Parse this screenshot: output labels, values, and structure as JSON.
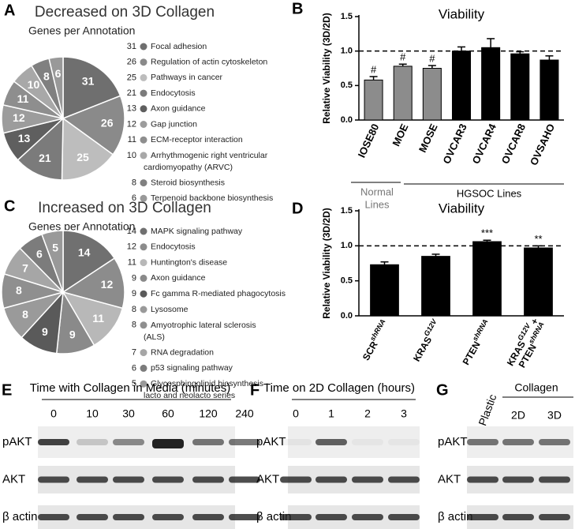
{
  "chart_data": [
    {
      "type": "pie",
      "panel_label": "A",
      "title": "Decreased on 3D Collagen",
      "subtitle": "Genes per Annotation",
      "categories": [
        "Focal adhesion",
        "Regulation of actin cytoskeleton",
        "Pathways in cancer",
        "Endocytosis",
        "Axon guidance",
        "Gap junction",
        "ECM-receptor interaction",
        "Arrhythmogenic right ventricular cardiomyopathy (ARVC)",
        "Steroid biosynthesis",
        "Terpenoid backbone biosynthesis"
      ],
      "values": [
        31,
        26,
        25,
        21,
        13,
        12,
        11,
        10,
        8,
        6
      ],
      "colors": [
        "#6f6f6f",
        "#8a8a8a",
        "#bdbdbd",
        "#7b7b7b",
        "#5f5f5f",
        "#9c9c9c",
        "#8e8e8e",
        "#a8a8a8",
        "#808080",
        "#999999"
      ]
    },
    {
      "type": "bar",
      "panel_label": "B",
      "title": "Viability",
      "ylabel": "Relative Viability (3D/2D)",
      "categories": [
        "IOSE80",
        "MOE",
        "MOSE",
        "OVCAR3",
        "OVCAR4",
        "OVCAR8",
        "OVSAHO"
      ],
      "values": [
        0.58,
        0.78,
        0.75,
        1.0,
        1.05,
        0.96,
        0.87
      ],
      "errors": [
        0.05,
        0.03,
        0.04,
        0.06,
        0.13,
        0.03,
        0.06
      ],
      "colors": [
        "#8c8c8c",
        "#8c8c8c",
        "#8c8c8c",
        "#000000",
        "#000000",
        "#000000",
        "#000000"
      ],
      "annotations": [
        "#",
        "#",
        "#",
        null,
        null,
        null,
        null
      ],
      "ylim": [
        0,
        1.5
      ],
      "yticks": [
        {
          "value": 0,
          "label": "0.0"
        },
        0.5,
        {
          "value": 1,
          "label": "1.0"
        },
        1.5
      ],
      "reference_line": 1,
      "groups": [
        {
          "lines": [
            "Normal",
            "Lines"
          ],
          "color": "#777777"
        },
        {
          "lines": [
            "HGSOC Lines"
          ],
          "color": "#000000"
        }
      ]
    },
    {
      "type": "pie",
      "panel_label": "C",
      "title": "Increased on 3D Collagen",
      "subtitle": "Genes per Annotation",
      "categories": [
        "MAPK signaling pathway",
        "Endocytosis",
        "Huntington's disease",
        "Axon guidance",
        "Fc gamma R-mediated phagocytosis",
        "Lysosome",
        "Amyotrophic lateral sclerosis (ALS)",
        "RNA degradation",
        "p53 signaling pathway",
        "Glycosphingolipid biosynthesis - lacto and neolacto series"
      ],
      "values": [
        14,
        12,
        11,
        9,
        9,
        8,
        8,
        7,
        6,
        5
      ],
      "colors": [
        "#707070",
        "#8c8c8c",
        "#b8b8b8",
        "#8a8a8a",
        "#5a5a5a",
        "#9a9a9a",
        "#8f8f8f",
        "#a6a6a6",
        "#7c7c7c",
        "#999999"
      ]
    },
    {
      "type": "bar",
      "panel_label": "D",
      "title": "Viability",
      "ylabel": "Relative Viability (3D/2D)",
      "categories": [
        [
          [
            {
              "text": "SCR"
            },
            {
              "sup": "shRNA"
            }
          ]
        ],
        [
          [
            {
              "text": "KRAS"
            },
            {
              "sup": "G12V"
            }
          ]
        ],
        [
          [
            {
              "text": "PTEN"
            },
            {
              "sup": "shRNA"
            }
          ]
        ],
        [
          [
            {
              "text": "KRAS"
            },
            {
              "sup": "G12V"
            },
            {
              "text": " +"
            }
          ],
          [
            {
              "text": "PTEN"
            },
            {
              "sup": "shRNA"
            }
          ]
        ]
      ],
      "values": [
        0.73,
        0.85,
        1.06,
        0.97
      ],
      "errors": [
        0.04,
        0.03,
        0.02,
        0.03
      ],
      "colors": [
        "#000000",
        "#000000",
        "#000000",
        "#000000"
      ],
      "annotations": [
        null,
        null,
        "***",
        "**"
      ],
      "ylim": [
        0,
        1.5
      ],
      "yticks": [
        {
          "value": 0,
          "label": "0.0"
        },
        0.5,
        {
          "value": 1,
          "label": "1.0"
        },
        1.5
      ],
      "reference_line": 1
    }
  ],
  "blot_panels": [
    {
      "panel_label": "E",
      "title": "Time with Collagen in Media (minutes)",
      "lanes": [
        "0",
        "10",
        "30",
        "60",
        "120",
        "240"
      ],
      "rows": [
        "pAKT",
        "AKT",
        "β actin"
      ]
    },
    {
      "panel_label": "F",
      "title": "Time on 2D Collagen (hours)",
      "lanes": [
        "0",
        "1",
        "2",
        "3"
      ],
      "rows": [
        "pAKT",
        "AKT",
        "β actin"
      ]
    },
    {
      "panel_label": "G",
      "title": "Collagen",
      "lanes": [
        "Plastic",
        "2D",
        "3D"
      ],
      "rows": [
        "pAKT",
        "AKT",
        "β actin"
      ]
    }
  ]
}
